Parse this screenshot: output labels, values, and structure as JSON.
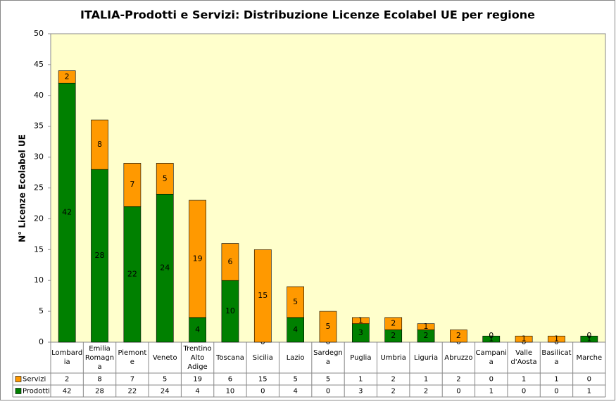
{
  "chart_data": {
    "type": "stacked-bar",
    "title": "ITALIA-Prodotti e Servizi: Distribuzione Licenze Ecolabel UE  per regione",
    "y_label": "N° Licenze Ecolabel UE",
    "categories": [
      "Lombardia",
      "Emilia Romagna",
      "Piemonte",
      "Veneto",
      "Trentino Alto Adige",
      "Toscana",
      "Sicilia",
      "Lazio",
      "Sardegna",
      "Puglia",
      "Umbria",
      "Liguria",
      "Abruzzo",
      "Campania",
      "Valle d'Aosta",
      "Basilicata",
      "Marche"
    ],
    "series": [
      {
        "name": "Prodotti",
        "color": "#008000",
        "values": [
          42,
          28,
          22,
          24,
          4,
          10,
          0,
          4,
          0,
          3,
          2,
          2,
          0,
          1,
          0,
          0,
          1
        ]
      },
      {
        "name": "Servizi",
        "color": "#ff9900",
        "values": [
          2,
          8,
          7,
          5,
          19,
          6,
          15,
          5,
          5,
          1,
          2,
          1,
          2,
          0,
          1,
          1,
          0
        ]
      }
    ],
    "ylim": [
      0,
      50
    ],
    "yticks": [
      0,
      5,
      10,
      15,
      20,
      25,
      30,
      35,
      40,
      45,
      50
    ],
    "grid": false
  }
}
